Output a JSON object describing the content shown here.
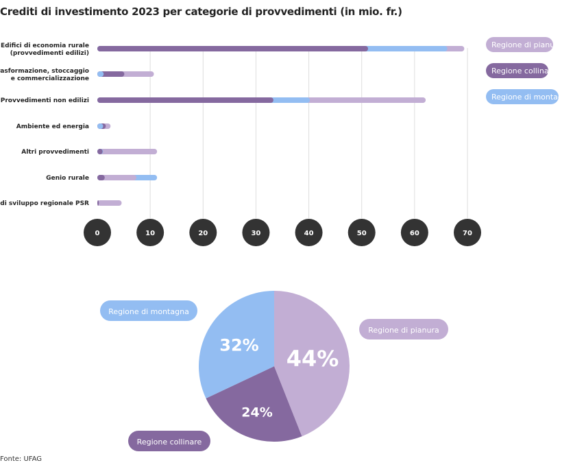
{
  "chart_data": [
    {
      "type": "bar",
      "orientation": "horizontal",
      "stacked": true,
      "title": "Crediti di investimento 2023 per categorie di provvedimenti (in mio. fr.)",
      "categories": [
        [
          "Edifici di economia rurale",
          "(provvedimenti edilizi)"
        ],
        [
          "Trasformazione, stoccaggio",
          "e commercializzazione"
        ],
        [
          "Provvedimenti non edilizi"
        ],
        [
          "Ambiente ed energia"
        ],
        [
          "Altri provvedimenti"
        ],
        [
          "Genio rurale"
        ],
        [
          "Progetti di sviluppo regionale PSR"
        ]
      ],
      "series": [
        {
          "name": "Regione di pianura",
          "color": "#c2aed4",
          "values": [
            3.2,
            5.6,
            21.9,
            0.9,
            10.2,
            6.0,
            4.3
          ]
        },
        {
          "name": "Regione collinare",
          "color": "#85699f",
          "values": [
            51.2,
            3.9,
            33.3,
            0.5,
            1.0,
            1.4,
            0.3
          ]
        },
        {
          "name": "Regione di montagna",
          "color": "#93bdf2",
          "values": [
            15.0,
            1.2,
            6.9,
            1.1,
            0.1,
            3.9,
            0
          ]
        }
      ],
      "segment_order": [
        [
          "Regione collinare",
          "Regione di montagna",
          "Regione di pianura"
        ],
        [
          "Regione di montagna",
          "Regione collinare",
          "Regione di pianura"
        ],
        [
          "Regione collinare",
          "Regione di montagna",
          "Regione di pianura"
        ],
        [
          "Regione di montagna",
          "Regione collinare",
          "Regione di pianura"
        ],
        [
          "Regione collinare",
          "Regione di montagna",
          "Regione di pianura"
        ],
        [
          "Regione collinare",
          "Regione di pianura",
          "Regione di montagna"
        ],
        [
          "Regione collinare",
          "Regione di pianura",
          "Regione di montagna"
        ]
      ],
      "xlim": [
        0,
        70
      ],
      "xticks": [
        "0",
        "10",
        "20",
        "30",
        "40",
        "50",
        "60",
        "70"
      ],
      "grid": true,
      "legend": "right"
    },
    {
      "type": "pie",
      "slices": [
        {
          "name": "Regione di pianura",
          "value": 44,
          "label": "44%",
          "color": "#c2aed4"
        },
        {
          "name": "Regione collinare",
          "value": 24,
          "label": "24%",
          "color": "#85699f"
        },
        {
          "name": "Regione di montagna",
          "value": 32,
          "label": "32%",
          "color": "#93bdf2"
        }
      ]
    }
  ],
  "source": "Fonte: UFAG"
}
